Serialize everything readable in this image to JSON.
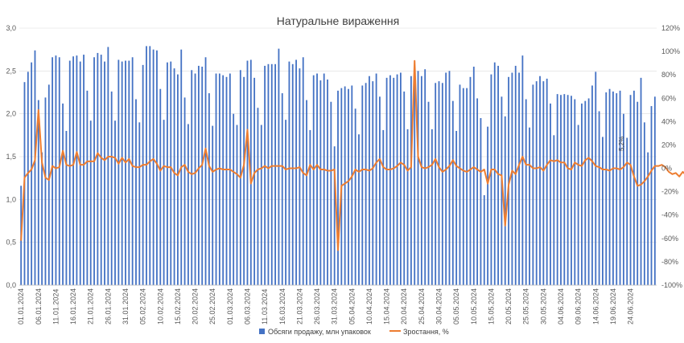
{
  "chart_data": {
    "type": "bar",
    "title": "Натуральне вираження",
    "colors": {
      "bars": "#4472C4",
      "line": "#ED7D31",
      "grid": "#D9D9D9"
    },
    "y_left": {
      "ylim": [
        0,
        3.0
      ],
      "ticks": [
        "0,0",
        "0,5",
        "1,0",
        "1,5",
        "2,0",
        "2,5",
        "3,0"
      ]
    },
    "y_right": {
      "ylim": [
        -100,
        120
      ],
      "ticks": [
        "-100%",
        "-80%",
        "-60%",
        "-40%",
        "-20%",
        "0%",
        "20%",
        "40%",
        "60%",
        "80%",
        "100%",
        "120%"
      ]
    },
    "x_tick_labels": [
      "01.01.2024",
      "06.01.2024",
      "11.01.2024",
      "16.01.2024",
      "21.01.2024",
      "26.01.2024",
      "31.01.2024",
      "05.02.2024",
      "10.02.2024",
      "15.02.2024",
      "20.02.2024",
      "25.02.2024",
      "01.03.2024",
      "06.03.2024",
      "11.03.2024",
      "16.03.2024",
      "21.03.2024",
      "26.03.2024",
      "31.03.2024",
      "05.04.2024",
      "10.04.2024",
      "15.04.2024",
      "20.04.2024",
      "25.04.2024",
      "30.04.2024",
      "05.05.2024",
      "10.05.2024",
      "15.05.2024",
      "20.05.2024",
      "25.05.2024",
      "30.05.2024",
      "04.06.2024",
      "09.06.2024",
      "14.06.2024",
      "19.06.2024",
      "24.06.2024"
    ],
    "label_every": 5,
    "annotation": "5,2%",
    "series": [
      {
        "name": "Обсяги продажу, млн упаковок",
        "kind": "bar",
        "axis": "left",
        "values": [
          1.16,
          2.37,
          2.49,
          2.6,
          2.74,
          2.16,
          1.55,
          2.19,
          2.34,
          2.66,
          2.68,
          2.66,
          2.12,
          1.8,
          2.62,
          2.67,
          2.68,
          2.61,
          2.69,
          2.27,
          1.92,
          2.66,
          2.71,
          2.69,
          2.61,
          2.78,
          2.26,
          1.92,
          2.63,
          2.61,
          2.62,
          2.62,
          2.66,
          2.17,
          1.9,
          2.57,
          2.79,
          2.79,
          2.75,
          2.74,
          2.29,
          1.93,
          2.6,
          2.61,
          2.53,
          2.46,
          2.75,
          2.19,
          1.88,
          2.51,
          2.47,
          2.56,
          2.55,
          2.66,
          2.24,
          1.86,
          2.47,
          2.47,
          2.45,
          2.43,
          2.47,
          2.0,
          1.87,
          2.51,
          2.43,
          2.62,
          2.63,
          2.42,
          2.07,
          1.87,
          2.56,
          2.58,
          2.58,
          2.58,
          2.76,
          2.24,
          1.93,
          2.61,
          2.58,
          2.63,
          2.53,
          2.66,
          2.16,
          1.81,
          2.45,
          2.47,
          2.39,
          2.47,
          2.4,
          2.14,
          1.62,
          2.27,
          2.3,
          2.32,
          2.29,
          2.33,
          2.06,
          1.76,
          2.33,
          2.36,
          2.44,
          2.38,
          2.47,
          2.2,
          1.81,
          2.42,
          2.45,
          2.42,
          2.46,
          2.48,
          2.26,
          1.82,
          2.44,
          2.48,
          2.5,
          2.44,
          2.52,
          2.14,
          1.82,
          2.36,
          2.38,
          2.36,
          2.48,
          2.5,
          2.15,
          1.8,
          2.34,
          2.3,
          2.3,
          2.43,
          2.55,
          2.18,
          1.95,
          1.05,
          1.85,
          2.46,
          2.6,
          2.56,
          2.2,
          1.97,
          2.43,
          2.48,
          2.56,
          2.48,
          2.68,
          2.17,
          1.84,
          2.34,
          2.38,
          2.44,
          2.38,
          2.41,
          2.12,
          1.75,
          2.23,
          2.22,
          2.23,
          2.22,
          2.21,
          2.17,
          1.87,
          2.12,
          2.15,
          2.18,
          2.33,
          2.49,
          2.03,
          1.73,
          2.25,
          2.29,
          2.26,
          2.24,
          2.27,
          2.0,
          1.72,
          2.22,
          2.27,
          2.14,
          2.42,
          1.9,
          1.55,
          2.09,
          2.2
        ]
      },
      {
        "name": "Зростання, %",
        "kind": "line",
        "axis": "right",
        "values": [
          -62,
          -8,
          -4,
          -1,
          7,
          50,
          5,
          -8,
          -10,
          2,
          0,
          1,
          15,
          3,
          2,
          3,
          14,
          3,
          3,
          6,
          6,
          6,
          13,
          9,
          7,
          10,
          10,
          9,
          4,
          9,
          5,
          8,
          2,
          1,
          1,
          3,
          3,
          6,
          8,
          4,
          -2,
          2,
          1,
          1,
          -4,
          -6,
          1,
          3,
          -3,
          -5,
          -4,
          0,
          3,
          17,
          2,
          -3,
          -1,
          0,
          -1,
          -1,
          -1,
          -3,
          -5,
          -8,
          3,
          33,
          -13,
          -4,
          -1,
          0,
          2,
          0,
          2,
          2,
          2,
          2,
          -1,
          0,
          0,
          0,
          1,
          -4,
          -6,
          3,
          -1,
          3,
          -1,
          -1,
          -2,
          -2,
          -1,
          -70,
          -15,
          -13,
          -11,
          -7,
          -1,
          -3,
          -1,
          -1,
          -2,
          0,
          5,
          8,
          1,
          -1,
          -1,
          0,
          2,
          5,
          3,
          -2,
          1,
          92,
          10,
          1,
          0,
          1,
          3,
          8,
          1,
          -3,
          -1,
          2,
          7,
          2,
          0,
          -2,
          -3,
          -1,
          1,
          -1,
          -3,
          -1,
          -13,
          -1,
          -1,
          -5,
          -6,
          -49,
          -14,
          -2,
          -5,
          3,
          10,
          3,
          3,
          0,
          0,
          1,
          -2,
          3,
          7,
          6,
          7,
          5,
          5,
          0,
          -1,
          5,
          3,
          2,
          7,
          9,
          6,
          2,
          1,
          -1,
          -1,
          -2,
          0,
          0,
          -1,
          1,
          5,
          3,
          -7,
          -15,
          -14,
          -11,
          -7,
          -2,
          2,
          2,
          3,
          1,
          -3,
          -5,
          -4,
          -7,
          -3,
          -6,
          -9,
          -1,
          -3,
          -5,
          -9
        ]
      }
    ]
  }
}
